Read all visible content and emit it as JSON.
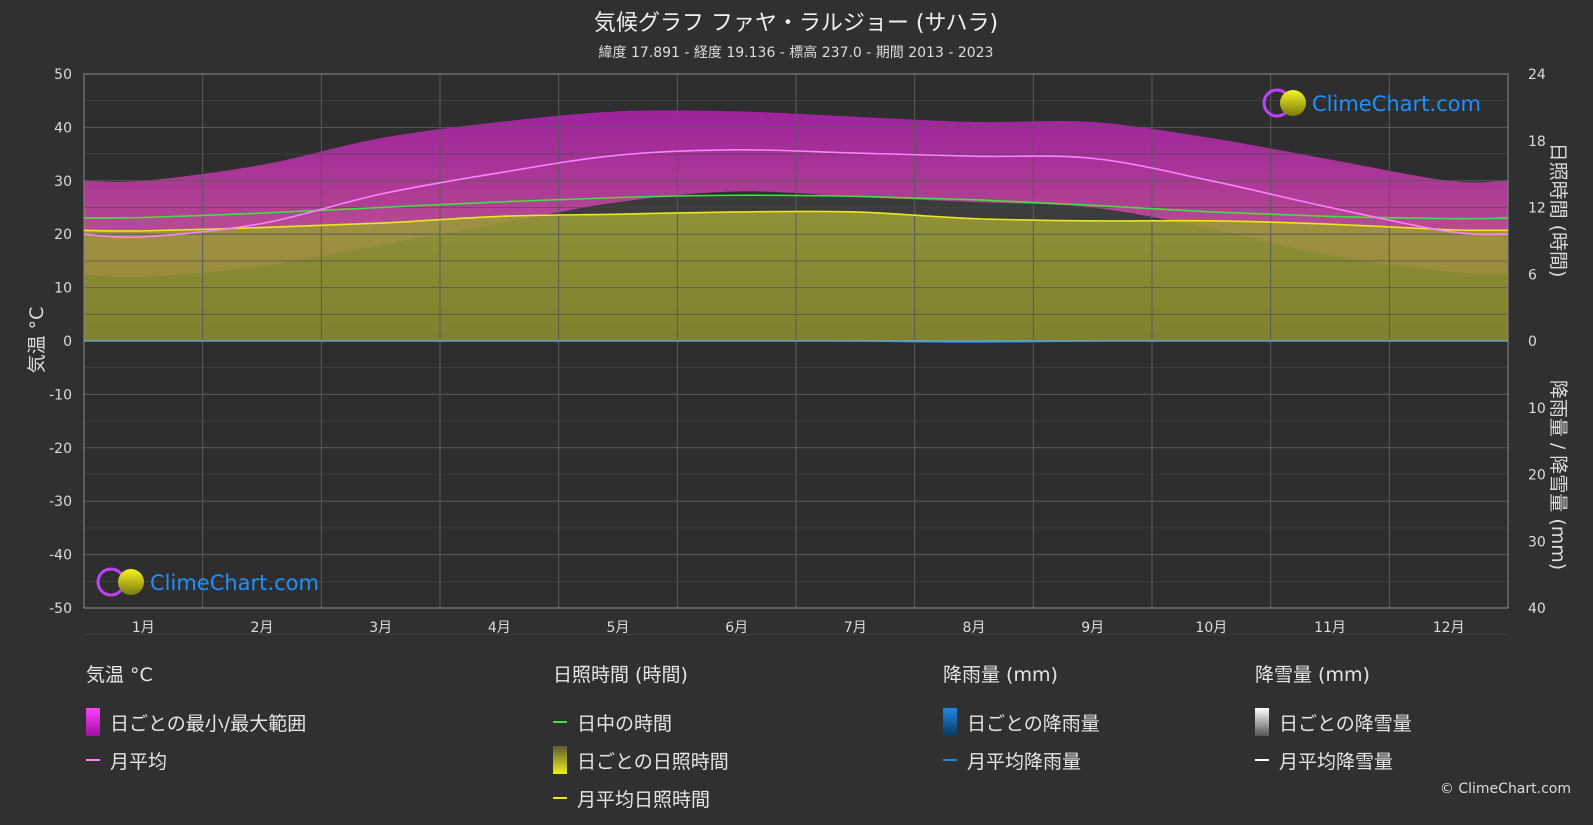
{
  "title": "気候グラフ ファヤ・ラルジョー (サハラ)",
  "subtitle": "緯度 17.891 - 経度 19.136 - 標高 237.0 - 期間 2013 - 2023",
  "brand": "ClimeChart.com",
  "copyright": "© ClimeChart.com",
  "legend": {
    "temp": {
      "head": "気温 °C",
      "range": "日ごとの最小/最大範囲",
      "avg": "月平均"
    },
    "sun": {
      "head": "日照時間 (時間)",
      "daylight": "日中の時間",
      "daily": "日ごとの日照時間",
      "avg": "月平均日照時間"
    },
    "rain": {
      "head": "降雨量 (mm)",
      "daily": "日ごとの降雨量",
      "avg": "月平均降雨量"
    },
    "snow": {
      "head": "降雪量 (mm)",
      "daily": "日ごとの降雪量",
      "avg": "月平均降雪量"
    }
  },
  "colors": {
    "background": "#303030",
    "temp_range": "#d020d0",
    "temp_avg": "#ff80ff",
    "daylight": "#40e040",
    "sunshine_fill": "#8a8a30",
    "sunshine_avg": "#e8e820",
    "rain": "#1e88e5",
    "snow": "#ffffff",
    "brand_text": "#1e90ff"
  },
  "chart_data": {
    "type": "area",
    "categories": [
      "1月",
      "2月",
      "3月",
      "4月",
      "5月",
      "6月",
      "7月",
      "8月",
      "9月",
      "10月",
      "11月",
      "12月"
    ],
    "y_left": {
      "label": "気温 °C",
      "range": [
        -50,
        50
      ],
      "ticks": [
        50,
        40,
        30,
        20,
        10,
        0,
        -10,
        -20,
        -30,
        -40,
        -50
      ]
    },
    "y_right_top": {
      "label": "日照時間 (時間)",
      "range": [
        0,
        24
      ],
      "ticks": [
        24,
        18,
        12,
        6,
        0
      ]
    },
    "y_right_bottom": {
      "label": "降雨量 / 降雪量 (mm)",
      "range": [
        0,
        40
      ],
      "ticks": [
        10,
        20,
        30,
        40
      ]
    },
    "grid": true,
    "series": [
      {
        "name": "月平均",
        "values": [
          19.5,
          22,
          27.5,
          31.5,
          34.8,
          35.8,
          35.2,
          34.6,
          34.2,
          30,
          25,
          20.5
        ]
      },
      {
        "name": "日ごとの最小/最大範囲",
        "min": [
          12,
          14,
          18,
          22,
          26,
          28,
          27,
          26,
          25,
          21,
          16,
          13
        ],
        "max": [
          30,
          33,
          38,
          41,
          43,
          43,
          42,
          41,
          41,
          38,
          34,
          30
        ]
      },
      {
        "name": "日中の時間",
        "values": [
          11.1,
          11.5,
          12.0,
          12.5,
          12.9,
          13.1,
          13.0,
          12.7,
          12.2,
          11.6,
          11.2,
          11.0
        ]
      },
      {
        "name": "月平均日照時間",
        "values": [
          9.9,
          10.2,
          10.6,
          11.2,
          11.4,
          11.6,
          11.6,
          11.0,
          10.8,
          10.8,
          10.5,
          10.0
        ]
      },
      {
        "name": "月平均降雨量",
        "values": [
          0,
          0,
          0,
          0,
          0,
          0,
          0.1,
          0.3,
          0.1,
          0,
          0,
          0
        ]
      }
    ]
  }
}
